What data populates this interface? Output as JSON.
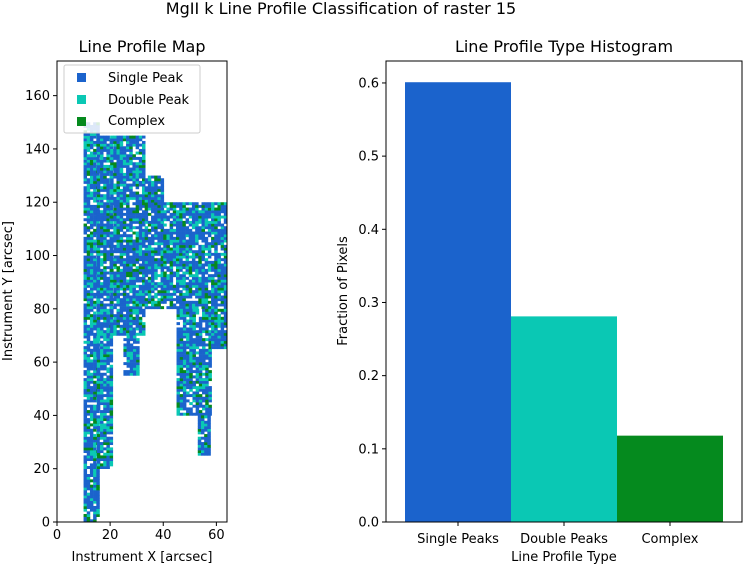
{
  "figure": {
    "title": "MgII k Line Profile Classification of raster 15"
  },
  "colors": {
    "single": "#1b63cc",
    "double": "#0ac8b4",
    "complex": "#058a1e",
    "axis": "#000000"
  },
  "chart_data": [
    {
      "type": "heatmap",
      "title": "Line Profile Map",
      "xlabel": "Instrument X [arcsec]",
      "ylabel": "Instrument Y [arcsec]",
      "xlim": [
        0,
        64
      ],
      "ylim": [
        0,
        173
      ],
      "xticks": [
        0,
        20,
        40,
        60
      ],
      "yticks": [
        0,
        20,
        40,
        60,
        80,
        100,
        120,
        140,
        160
      ],
      "legend": {
        "placement": "upper-left",
        "entries": [
          "Single Peak",
          "Double Peak",
          "Complex"
        ]
      },
      "regions": [
        {
          "x0": 10,
          "x1": 15,
          "y0": 0,
          "y1": 150
        },
        {
          "x0": 15,
          "x1": 20,
          "y0": 20,
          "y1": 145
        },
        {
          "x0": 20,
          "x1": 33,
          "y0": 70,
          "y1": 145
        },
        {
          "x0": 33,
          "x1": 40,
          "y0": 80,
          "y1": 130
        },
        {
          "x0": 40,
          "x1": 64,
          "y0": 80,
          "y1": 120
        },
        {
          "x0": 45,
          "x1": 58,
          "y0": 40,
          "y1": 80
        },
        {
          "x0": 53,
          "x1": 57,
          "y0": 25,
          "y1": 40
        },
        {
          "x0": 25,
          "x1": 30,
          "y0": 55,
          "y1": 70
        },
        {
          "x0": 58,
          "x1": 64,
          "y0": 65,
          "y1": 80
        }
      ]
    },
    {
      "type": "bar",
      "title": "Line Profile Type Histogram",
      "xlabel": "Line Profile Type",
      "ylabel": "Fraction of Pixels",
      "categories": [
        "Single Peaks",
        "Double Peaks",
        "Complex"
      ],
      "values": [
        0.601,
        0.281,
        0.118
      ],
      "ylim": [
        0,
        0.63
      ],
      "yticks": [
        0.0,
        0.1,
        0.2,
        0.3,
        0.4,
        0.5,
        0.6
      ]
    }
  ]
}
